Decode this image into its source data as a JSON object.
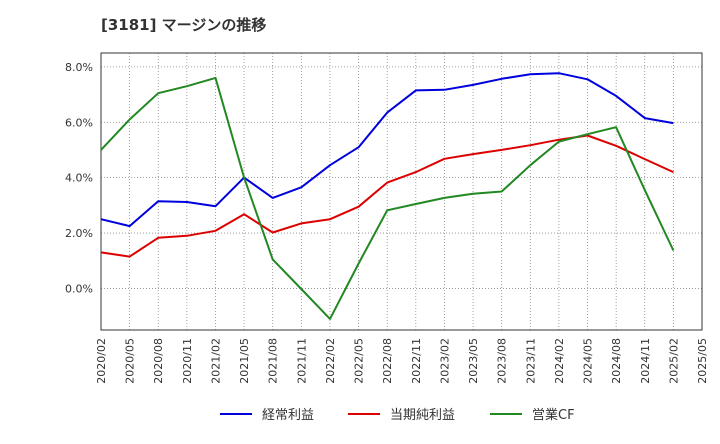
{
  "title": "[3181]  マージンの推移",
  "chart_data": {
    "type": "line",
    "title": "[3181]  マージンの推移",
    "xlabel": "",
    "ylabel": "",
    "x": [
      "2020/02",
      "2020/05",
      "2020/08",
      "2020/11",
      "2021/02",
      "2021/05",
      "2021/08",
      "2021/11",
      "2022/02",
      "2022/05",
      "2022/08",
      "2022/11",
      "2023/02",
      "2023/05",
      "2023/08",
      "2023/11",
      "2024/02",
      "2024/05",
      "2024/08",
      "2024/11",
      "2025/02",
      "2025/05"
    ],
    "ylim": [
      -1.5,
      8.5
    ],
    "yticks": [
      0,
      2,
      4,
      6,
      8
    ],
    "ytick_labels": [
      "0.0%",
      "2.0%",
      "4.0%",
      "6.0%",
      "8.0%"
    ],
    "grid": true,
    "legend_position": "bottom",
    "series": [
      {
        "name": "経常利益",
        "color": "#0000dd",
        "values": [
          2.5,
          2.25,
          3.15,
          3.12,
          2.97,
          4.0,
          3.27,
          3.65,
          4.45,
          5.1,
          6.35,
          7.15,
          7.17,
          7.35,
          7.57,
          7.73,
          7.77,
          7.55,
          6.95,
          6.15,
          5.97,
          null
        ]
      },
      {
        "name": "当期純利益",
        "color": "#dd0000",
        "values": [
          1.3,
          1.15,
          1.83,
          1.9,
          2.08,
          2.68,
          2.02,
          2.35,
          2.5,
          2.95,
          3.82,
          4.2,
          4.68,
          4.85,
          5.0,
          5.17,
          5.37,
          5.52,
          5.15,
          4.67,
          4.2,
          null
        ]
      },
      {
        "name": "営業CF",
        "color": "#228822",
        "values": [
          5.0,
          6.1,
          7.05,
          7.3,
          7.6,
          4.0,
          1.05,
          -0.02,
          -1.1,
          0.9,
          2.82,
          3.05,
          3.27,
          3.42,
          3.5,
          4.45,
          5.3,
          5.57,
          5.82,
          3.55,
          1.37,
          null
        ]
      }
    ]
  }
}
